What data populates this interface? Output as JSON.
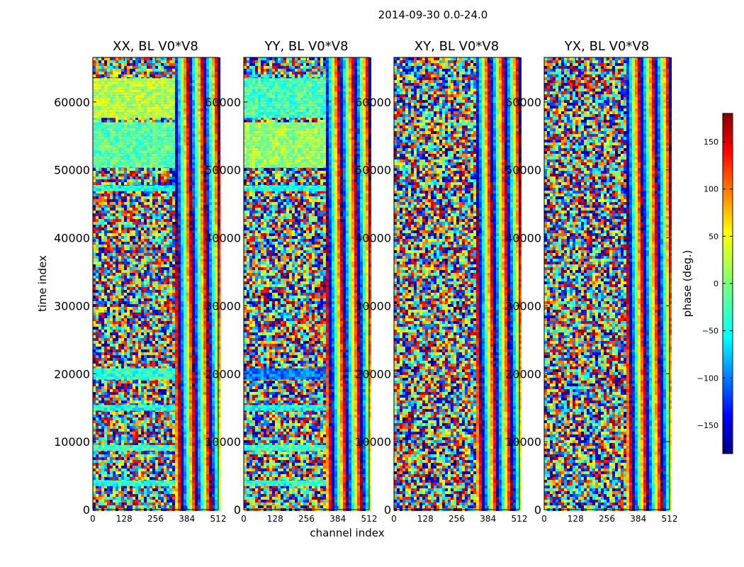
{
  "chart_data": {
    "type": "heatmap",
    "title": "2014-09-30 0.0-24.0",
    "xlabel": "channel index",
    "ylabel": "time index",
    "colorbar_label": "phase (deg.)",
    "colormap": "jet",
    "clim": [
      -180,
      180
    ],
    "colorbar_ticks": [
      -150,
      -100,
      -50,
      0,
      50,
      100,
      150
    ],
    "colorbar_tick_labels": [
      "−150",
      "−100",
      "−50",
      "0",
      "50",
      "100",
      "150"
    ],
    "xlim": [
      0,
      512
    ],
    "ylim": [
      0,
      66560
    ],
    "xticks": [
      0,
      128,
      256,
      384,
      512
    ],
    "yticks": [
      0,
      10000,
      20000,
      30000,
      40000,
      50000,
      60000
    ],
    "grid": false,
    "panels": [
      {
        "title": "XX, BL V0*V8",
        "bands": [
          {
            "y0": 50500,
            "y1": 57000,
            "x1": 325,
            "phase": -15
          },
          {
            "y0": 57800,
            "y1": 63500,
            "x1": 325,
            "phase": 20
          },
          {
            "y0": 47000,
            "y1": 47700,
            "x1": 325,
            "phase": -35
          },
          {
            "y0": 19500,
            "y1": 20800,
            "x1": 325,
            "phase": -30
          },
          {
            "y0": 14800,
            "y1": 15400,
            "x1": 325,
            "phase": -35
          },
          {
            "y0": 8700,
            "y1": 9500,
            "x1": 325,
            "phase": -20
          },
          {
            "y0": 3700,
            "y1": 4300,
            "x1": 325,
            "phase": -30
          }
        ]
      },
      {
        "title": "YY, BL V0*V8",
        "bands": [
          {
            "y0": 50500,
            "y1": 57000,
            "x1": 325,
            "phase": 10
          },
          {
            "y0": 57800,
            "y1": 63500,
            "x1": 325,
            "phase": -20
          },
          {
            "y0": 47000,
            "y1": 47700,
            "x1": 325,
            "phase": -35
          },
          {
            "y0": 19500,
            "y1": 20800,
            "x1": 325,
            "phase": -95
          },
          {
            "y0": 14800,
            "y1": 15400,
            "x1": 325,
            "phase": -40
          },
          {
            "y0": 8700,
            "y1": 9500,
            "x1": 325,
            "phase": -20
          },
          {
            "y0": 3700,
            "y1": 4300,
            "x1": 325,
            "phase": -30
          }
        ]
      },
      {
        "title": "XY, BL V0*V8",
        "bands": []
      },
      {
        "title": "YX, BL V0*V8",
        "bands": []
      }
    ]
  }
}
